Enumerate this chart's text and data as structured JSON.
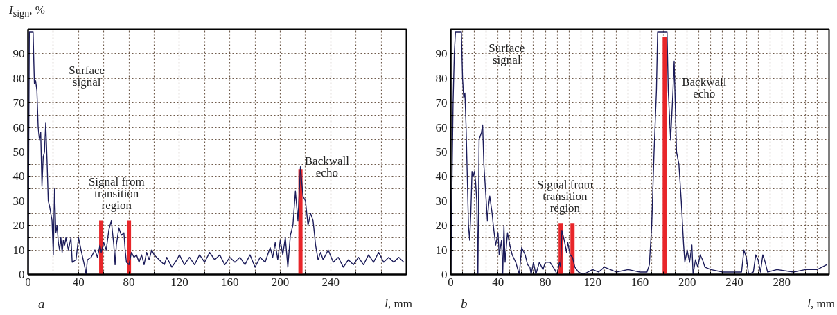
{
  "chart_data": [
    {
      "type": "line",
      "xlabel": "l, mm",
      "ylabel": "I$_{sign}$, %",
      "xlim": [
        0,
        300
      ],
      "ylim": [
        0,
        100
      ],
      "xticks": [
        0,
        {
          "value": 20,
          "label": null
        },
        40,
        {
          "value": 60,
          "label": null
        },
        80,
        {
          "value": 100,
          "label": null
        },
        120,
        {
          "value": 140,
          "label": null
        },
        160,
        {
          "value": 180,
          "label": null
        },
        200,
        {
          "value": 220,
          "label": null
        },
        240,
        {
          "value": 260,
          "label": null
        },
        {
          "value": 280,
          "label": null
        }
      ],
      "yticks": [
        0,
        {
          "value": 5,
          "label": null
        },
        10,
        {
          "value": 15,
          "label": null
        },
        20,
        {
          "value": 25,
          "label": null
        },
        30,
        {
          "value": 35,
          "label": null
        },
        40,
        {
          "value": 45,
          "label": null
        },
        50,
        {
          "value": 55,
          "label": null
        },
        60,
        {
          "value": 65,
          "label": null
        },
        70,
        {
          "value": 75,
          "label": null
        },
        80,
        {
          "value": 85,
          "label": null
        },
        90,
        {
          "value": 95,
          "label": null
        },
        {
          "value": 100,
          "label": null
        }
      ],
      "grid": true,
      "line_style": "solid",
      "marker": "none",
      "annotations": [
        "Surface signal",
        "Signal from transition region",
        "Backwall echo",
        "a"
      ],
      "series": [
        {
          "color": "#1c1c5a",
          "x": [
            0,
            1,
            4,
            4.5,
            5,
            6,
            7,
            8,
            9,
            10,
            11,
            12,
            13,
            14,
            15,
            16,
            17,
            18,
            19,
            20,
            21,
            22,
            23,
            24,
            25,
            26,
            27,
            28,
            29,
            30,
            32,
            34,
            35,
            38,
            40,
            42,
            45,
            46,
            47,
            50,
            53,
            55,
            57,
            58,
            60,
            62,
            64,
            66,
            68,
            69,
            70,
            72,
            74,
            76,
            77,
            78,
            80,
            82,
            84,
            86,
            88,
            90,
            92,
            94,
            96,
            98,
            100,
            104,
            108,
            110,
            114,
            118,
            120,
            124,
            128,
            132,
            136,
            140,
            144,
            148,
            152,
            156,
            160,
            164,
            168,
            172,
            176,
            180,
            184,
            188,
            192,
            194,
            196,
            198,
            200,
            202,
            204,
            206,
            208,
            210,
            212,
            214,
            216,
            218,
            220,
            222,
            224,
            226,
            228,
            230,
            232,
            234,
            238,
            242,
            246,
            250,
            254,
            258,
            262,
            266,
            270,
            274,
            278,
            282,
            286,
            290,
            294,
            298
          ],
          "values": [
            0,
            99,
            99,
            88,
            78,
            79,
            75,
            60,
            55,
            58,
            36,
            48,
            50,
            62,
            47,
            30,
            28,
            25,
            22,
            8,
            35,
            17,
            20,
            13,
            10,
            15,
            9,
            14,
            12,
            15,
            10,
            15,
            5,
            6,
            15,
            10,
            3,
            0,
            6,
            7,
            10,
            7,
            12,
            9,
            13,
            10,
            18,
            22,
            12,
            4,
            12,
            19,
            16,
            17,
            10,
            5,
            4,
            9,
            7,
            8,
            5,
            8,
            4,
            9,
            6,
            10,
            8,
            6,
            4,
            7,
            3,
            6,
            8,
            4,
            7,
            4,
            8,
            5,
            9,
            6,
            8,
            4,
            7,
            5,
            7,
            4,
            8,
            3,
            7,
            5,
            11,
            7,
            13,
            6,
            14,
            8,
            15,
            3,
            16,
            20,
            34,
            22,
            44,
            32,
            30,
            20,
            25,
            22,
            12,
            6,
            9,
            6,
            10,
            5,
            7,
            3,
            6,
            4,
            7,
            4,
            8,
            5,
            9,
            5,
            7,
            5,
            7,
            5
          ]
        },
        {
          "type": "bar",
          "color": "#e8262a",
          "x": [
            58,
            80,
            216
          ],
          "values": [
            22,
            22,
            43
          ]
        }
      ]
    },
    {
      "type": "line",
      "xlabel": "l, mm",
      "xlim": [
        0,
        320
      ],
      "ylim": [
        0,
        100
      ],
      "xticks": [
        0,
        {
          "value": 10,
          "label": null
        },
        {
          "value": 20,
          "label": null
        },
        {
          "value": 30,
          "label": null
        },
        40,
        {
          "value": 50,
          "label": null
        },
        {
          "value": 60,
          "label": null
        },
        {
          "value": 70,
          "label": null
        },
        80,
        {
          "value": 90,
          "label": null
        },
        {
          "value": 100,
          "label": null
        },
        {
          "value": 110,
          "label": null
        },
        120,
        {
          "value": 130,
          "label": null
        },
        {
          "value": 140,
          "label": null
        },
        {
          "value": 150,
          "label": null
        },
        160,
        {
          "value": 170,
          "label": null
        },
        {
          "value": 180,
          "label": null
        },
        {
          "value": 190,
          "label": null
        },
        200,
        {
          "value": 210,
          "label": null
        },
        {
          "value": 220,
          "label": null
        },
        {
          "value": 230,
          "label": null
        },
        240,
        {
          "value": 250,
          "label": null
        },
        {
          "value": 260,
          "label": null
        },
        {
          "value": 270,
          "label": null
        },
        280,
        {
          "value": 290,
          "label": null
        },
        {
          "value": 300,
          "label": null
        },
        {
          "value": 310,
          "label": null
        }
      ],
      "yticks": [
        0,
        {
          "value": 5,
          "label": null
        },
        10,
        {
          "value": 15,
          "label": null
        },
        20,
        {
          "value": 25,
          "label": null
        },
        30,
        {
          "value": 35,
          "label": null
        },
        40,
        {
          "value": 45,
          "label": null
        },
        50,
        {
          "value": 55,
          "label": null
        },
        60,
        {
          "value": 65,
          "label": null
        },
        70,
        {
          "value": 75,
          "label": null
        },
        80,
        {
          "value": 85,
          "label": null
        },
        90,
        {
          "value": 95,
          "label": null
        },
        {
          "value": 100,
          "label": null
        }
      ],
      "grid": true,
      "line_style": "solid",
      "marker": "none",
      "annotations": [
        "Surface signal",
        "Signal from transition region",
        "Backwall echo",
        "b"
      ],
      "series": [
        {
          "color": "#1c1c5a",
          "x": [
            0,
            1,
            2,
            3,
            4,
            9,
            10,
            11,
            12,
            13,
            14,
            15,
            16,
            17,
            18,
            19,
            20,
            21,
            22,
            23,
            24,
            26,
            27,
            28,
            30,
            31,
            32,
            33,
            35,
            36,
            38,
            40,
            41,
            43,
            44,
            45,
            46,
            48,
            50,
            52,
            55,
            58,
            60,
            63,
            65,
            67,
            68,
            70,
            72,
            75,
            78,
            80,
            84,
            88,
            90,
            92,
            93,
            94,
            96,
            98,
            99,
            101,
            103,
            105,
            108,
            112,
            120,
            125,
            130,
            140,
            150,
            160,
            166,
            168,
            170,
            172,
            174,
            175,
            183,
            184,
            186,
            188,
            189,
            191,
            193,
            195,
            197,
            198,
            200,
            202,
            204,
            205,
            207,
            209,
            211,
            213,
            215,
            220,
            230,
            240,
            246,
            248,
            250,
            252,
            256,
            258,
            260,
            262,
            264,
            266,
            268,
            276,
            290,
            300,
            310,
            318
          ],
          "values": [
            0,
            35,
            70,
            90,
            99,
            99,
            80,
            72,
            74,
            60,
            40,
            20,
            14,
            25,
            42,
            40,
            42,
            38,
            30,
            0,
            55,
            58,
            61,
            45,
            30,
            22,
            28,
            32,
            25,
            20,
            12,
            17,
            8,
            14,
            0,
            20,
            5,
            17,
            12,
            8,
            5,
            0,
            11,
            8,
            4,
            3,
            0,
            5,
            0,
            5,
            2,
            5,
            5,
            2,
            0,
            5,
            3,
            18,
            14,
            9,
            13,
            8,
            7,
            3,
            1,
            0,
            2,
            1,
            3,
            1,
            2,
            1,
            1,
            4,
            20,
            50,
            75,
            99,
            99,
            75,
            55,
            75,
            87,
            50,
            45,
            30,
            12,
            5,
            10,
            5,
            12,
            0,
            6,
            3,
            8,
            6,
            3,
            2,
            1,
            1,
            1,
            10,
            7,
            0,
            1,
            8,
            6,
            1,
            8,
            5,
            1,
            2,
            1,
            2,
            2,
            4
          ]
        },
        {
          "type": "bar",
          "color": "#e8262a",
          "x": [
            93,
            103,
            181
          ],
          "values": [
            21,
            21,
            97
          ]
        }
      ]
    }
  ]
}
